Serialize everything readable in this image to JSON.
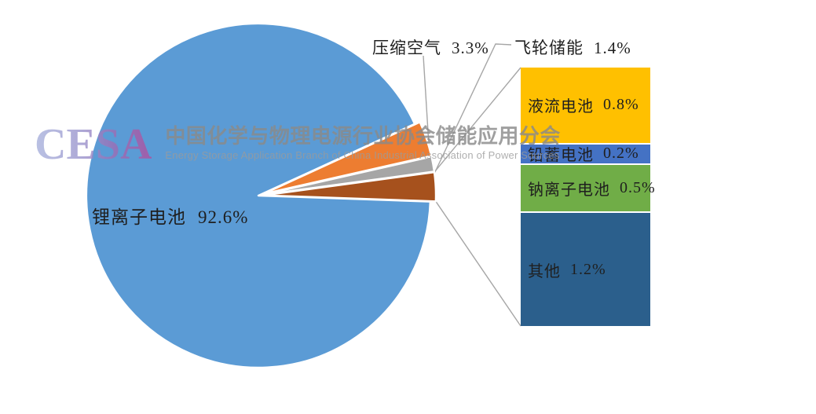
{
  "watermark": {
    "logo_text": "CESA",
    "title": "中国化学与物理电源行业协会储能应用分会",
    "subtitle": "Energy Storage Application Branch of China Industrial Association of Power Sources"
  },
  "chart_data": {
    "type": "pie",
    "subtype": "bar-of-pie",
    "title": "",
    "unit": "%",
    "legend_position": "none",
    "pie_slices": [
      {
        "label": "锂离子电池",
        "value": 92.6,
        "pct": "92.6%",
        "color": "#5B9BD5"
      },
      {
        "label": "压缩空气",
        "value": 3.3,
        "pct": "3.3%",
        "color": "#ED7D31"
      },
      {
        "label": "飞轮储能",
        "value": 1.4,
        "pct": "1.4%",
        "color": "#A6A6A6"
      }
    ],
    "combined_slice": {
      "value": 2.7,
      "color": "#A6511D",
      "expands_to": "bar"
    },
    "bar_segments": [
      {
        "label": "液流电池",
        "value": 0.8,
        "pct": "0.8%",
        "color": "#FFC000"
      },
      {
        "label": "铅蓄电池",
        "value": 0.2,
        "pct": "0.2%",
        "color": "#4472C4"
      },
      {
        "label": "钠离子电池",
        "value": 0.5,
        "pct": "0.5%",
        "color": "#70AD47"
      },
      {
        "label": "其他",
        "value": 1.2,
        "pct": "1.2%",
        "color": "#2B5F8C"
      }
    ],
    "colors": {
      "leader_line": "#A6A6A6",
      "label_text": "#1F1F1F",
      "background": "#FFFFFF"
    }
  }
}
